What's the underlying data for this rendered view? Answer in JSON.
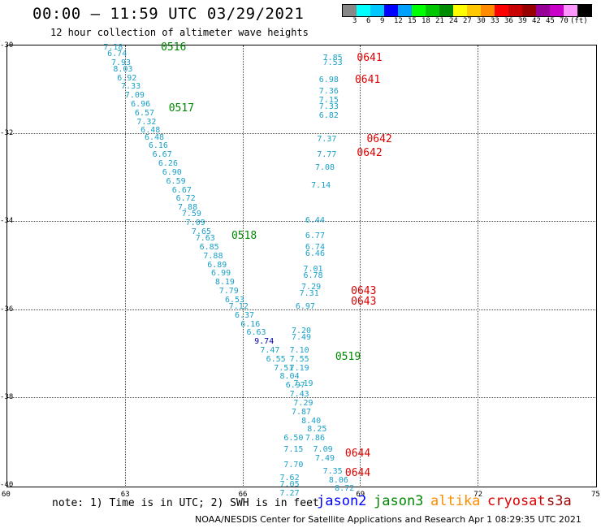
{
  "header": {
    "title": "00:00 — 11:59 UTC 03/29/2021",
    "subtitle": "12 hour collection of altimeter wave heights"
  },
  "colorbar": {
    "colors": [
      "#888888",
      "#00ffff",
      "#00c8ff",
      "#0000ff",
      "#00a0ff",
      "#00ff00",
      "#00c800",
      "#008c00",
      "#ffff00",
      "#ffc800",
      "#ff8c00",
      "#ff0000",
      "#c80000",
      "#960000",
      "#960096",
      "#c800c8",
      "#ff96ff",
      "#000000"
    ],
    "labels": [
      "3",
      "6",
      "9",
      "12",
      "15",
      "18",
      "21",
      "24",
      "27",
      "30",
      "33",
      "36",
      "39",
      "42",
      "45",
      "70",
      "(ft)"
    ]
  },
  "axes": {
    "y_labels": [
      "-30",
      "-32",
      "-34",
      "-36",
      "-38",
      "-40"
    ],
    "x_labels": [
      "60",
      "63",
      "66",
      "69",
      "72",
      "75"
    ]
  },
  "track_times": [
    {
      "label": "0516",
      "color": "#008800",
      "lon": 64.0,
      "lat": -30.05
    },
    {
      "label": "0517",
      "color": "#008800",
      "lon": 64.2,
      "lat": -31.45
    },
    {
      "label": "0518",
      "color": "#008800",
      "lon": 65.8,
      "lat": -34.35
    },
    {
      "label": "0519",
      "color": "#008800",
      "lon": 68.45,
      "lat": -37.1
    },
    {
      "label": "0641",
      "color": "#dd0000",
      "lon": 69.0,
      "lat": -30.3
    },
    {
      "label": "0641",
      "color": "#dd0000",
      "lon": 68.95,
      "lat": -30.8
    },
    {
      "label": "0642",
      "color": "#dd0000",
      "lon": 69.25,
      "lat": -32.15
    },
    {
      "label": "0642",
      "color": "#dd0000",
      "lon": 69.0,
      "lat": -32.45
    },
    {
      "label": "0643",
      "color": "#dd0000",
      "lon": 68.85,
      "lat": -35.6
    },
    {
      "label": "0643",
      "color": "#dd0000",
      "lon": 68.85,
      "lat": -35.85
    },
    {
      "label": "0644",
      "color": "#dd0000",
      "lon": 68.7,
      "lat": -39.3
    },
    {
      "label": "0644",
      "color": "#dd0000",
      "lon": 68.7,
      "lat": -39.75
    }
  ],
  "wave_heights": [
    {
      "v": "7.18",
      "lon": 62.7,
      "lat": -30.05
    },
    {
      "v": "6.74",
      "lon": 62.8,
      "lat": -30.2
    },
    {
      "v": "7.93",
      "lon": 62.9,
      "lat": -30.4
    },
    {
      "v": "8.03",
      "lon": 62.95,
      "lat": -30.55
    },
    {
      "v": "6.92",
      "lon": 63.05,
      "lat": -30.75
    },
    {
      "v": "7.33",
      "lon": 63.15,
      "lat": -30.95
    },
    {
      "v": "7.09",
      "lon": 63.25,
      "lat": -31.15
    },
    {
      "v": "6.96",
      "lon": 63.4,
      "lat": -31.35
    },
    {
      "v": "6.57",
      "lon": 63.5,
      "lat": -31.55
    },
    {
      "v": "7.32",
      "lon": 63.55,
      "lat": -31.75
    },
    {
      "v": "6.48",
      "lon": 63.65,
      "lat": -31.95
    },
    {
      "v": "6.48",
      "lon": 63.75,
      "lat": -32.1
    },
    {
      "v": "6.16",
      "lon": 63.85,
      "lat": -32.3
    },
    {
      "v": "6.67",
      "lon": 63.95,
      "lat": -32.5
    },
    {
      "v": "6.26",
      "lon": 64.1,
      "lat": -32.7
    },
    {
      "v": "6.90",
      "lon": 64.2,
      "lat": -32.9
    },
    {
      "v": "6.59",
      "lon": 64.3,
      "lat": -33.1
    },
    {
      "v": "6.67",
      "lon": 64.45,
      "lat": -33.3
    },
    {
      "v": "6.72",
      "lon": 64.55,
      "lat": -33.5
    },
    {
      "v": "7.88",
      "lon": 64.6,
      "lat": -33.7
    },
    {
      "v": "7.59",
      "lon": 64.7,
      "lat": -33.85
    },
    {
      "v": "7.09",
      "lon": 64.8,
      "lat": -34.05
    },
    {
      "v": "7.65",
      "lon": 64.95,
      "lat": -34.25
    },
    {
      "v": "7.63",
      "lon": 65.05,
      "lat": -34.4
    },
    {
      "v": "6.85",
      "lon": 65.15,
      "lat": -34.6
    },
    {
      "v": "7.88",
      "lon": 65.25,
      "lat": -34.8
    },
    {
      "v": "6.89",
      "lon": 65.35,
      "lat": -35.0
    },
    {
      "v": "6.99",
      "lon": 65.45,
      "lat": -35.2
    },
    {
      "v": "8.19",
      "lon": 65.55,
      "lat": -35.4
    },
    {
      "v": "7.79",
      "lon": 65.65,
      "lat": -35.6
    },
    {
      "v": "6.53",
      "lon": 65.8,
      "lat": -35.8
    },
    {
      "v": "7.12",
      "lon": 65.9,
      "lat": -35.95
    },
    {
      "v": "6.37",
      "lon": 66.05,
      "lat": -36.15
    },
    {
      "v": "6.16",
      "lon": 66.2,
      "lat": -36.35
    },
    {
      "v": "6.63",
      "lon": 66.35,
      "lat": -36.55
    },
    {
      "v": "9.74",
      "lon": 66.55,
      "lat": -36.75,
      "hi": true
    },
    {
      "v": "7.47",
      "lon": 66.7,
      "lat": -36.95
    },
    {
      "v": "6.55",
      "lon": 66.85,
      "lat": -37.15
    },
    {
      "v": "7.51",
      "lon": 67.05,
      "lat": -37.35
    },
    {
      "v": "8.04",
      "lon": 67.2,
      "lat": -37.55
    },
    {
      "v": "6.97",
      "lon": 67.35,
      "lat": -37.75
    },
    {
      "v": "7.43",
      "lon": 67.45,
      "lat": -37.95
    },
    {
      "v": "7.29",
      "lon": 67.55,
      "lat": -38.15
    },
    {
      "v": "7.87",
      "lon": 67.5,
      "lat": -38.35
    },
    {
      "v": "8.40",
      "lon": 67.75,
      "lat": -38.55
    },
    {
      "v": "8.25",
      "lon": 67.9,
      "lat": -38.75
    },
    {
      "v": "6.50",
      "lon": 67.3,
      "lat": -38.95
    },
    {
      "v": "7.86",
      "lon": 67.85,
      "lat": -38.95
    },
    {
      "v": "7.15",
      "lon": 67.3,
      "lat": -39.2
    },
    {
      "v": "7.09",
      "lon": 68.05,
      "lat": -39.2
    },
    {
      "v": "7.49",
      "lon": 68.1,
      "lat": -39.4
    },
    {
      "v": "7.70",
      "lon": 67.3,
      "lat": -39.55
    },
    {
      "v": "7.35",
      "lon": 68.3,
      "lat": -39.7
    },
    {
      "v": "7.62",
      "lon": 67.2,
      "lat": -39.85
    },
    {
      "v": "8.06",
      "lon": 68.45,
      "lat": -39.9
    },
    {
      "v": "7.05",
      "lon": 67.2,
      "lat": -40.0
    },
    {
      "v": "7.27",
      "lon": 67.2,
      "lat": -40.2
    },
    {
      "v": "8.72",
      "lon": 68.6,
      "lat": -40.1
    },
    {
      "v": "7.85",
      "lon": 68.3,
      "lat": -30.3
    },
    {
      "v": "7.53",
      "lon": 68.3,
      "lat": -30.4
    },
    {
      "v": "6.98",
      "lon": 68.2,
      "lat": -30.8
    },
    {
      "v": "7.36",
      "lon": 68.2,
      "lat": -31.05
    },
    {
      "v": "7.15",
      "lon": 68.2,
      "lat": -31.25
    },
    {
      "v": "7.33",
      "lon": 68.2,
      "lat": -31.4
    },
    {
      "v": "6.82",
      "lon": 68.2,
      "lat": -31.6
    },
    {
      "v": "7.37",
      "lon": 68.15,
      "lat": -32.15
    },
    {
      "v": "7.77",
      "lon": 68.15,
      "lat": -32.5
    },
    {
      "v": "7.08",
      "lon": 68.1,
      "lat": -32.8
    },
    {
      "v": "7.14",
      "lon": 68.0,
      "lat": -33.2
    },
    {
      "v": "6.44",
      "lon": 67.85,
      "lat": -34.0
    },
    {
      "v": "6.77",
      "lon": 67.85,
      "lat": -34.35
    },
    {
      "v": "6.74",
      "lon": 67.85,
      "lat": -34.6
    },
    {
      "v": "6.46",
      "lon": 67.85,
      "lat": -34.75
    },
    {
      "v": "7.01",
      "lon": 67.8,
      "lat": -35.1
    },
    {
      "v": "6.78",
      "lon": 67.8,
      "lat": -35.25
    },
    {
      "v": "7.29",
      "lon": 67.75,
      "lat": -35.5
    },
    {
      "v": "7.31",
      "lon": 67.7,
      "lat": -35.65
    },
    {
      "v": "6.97",
      "lon": 67.6,
      "lat": -35.95
    },
    {
      "v": "7.20",
      "lon": 67.5,
      "lat": -36.5
    },
    {
      "v": "7.49",
      "lon": 67.5,
      "lat": -36.65
    },
    {
      "v": "7.10",
      "lon": 67.45,
      "lat": -36.95
    },
    {
      "v": "7.55",
      "lon": 67.45,
      "lat": -37.15
    },
    {
      "v": "7.19",
      "lon": 67.45,
      "lat": -37.35
    },
    {
      "v": "7.19",
      "lon": 67.55,
      "lat": -37.7
    }
  ],
  "footer": {
    "note": "note: 1) Time is in UTC; 2) SWH is in feet",
    "satellites": [
      {
        "name": "jason2",
        "color": "#0000ff"
      },
      {
        "name": "jason3",
        "color": "#008800"
      },
      {
        "name": "altika",
        "color": "#ff8c00"
      },
      {
        "name": "cryosat",
        "color": "#dd0000"
      },
      {
        "name": "s3a",
        "color": "#990000"
      }
    ],
    "credit": "NOAA/NESDIS Center for Satellite Applications and Research    Apr  1 08:29:35 UTC 2021"
  }
}
